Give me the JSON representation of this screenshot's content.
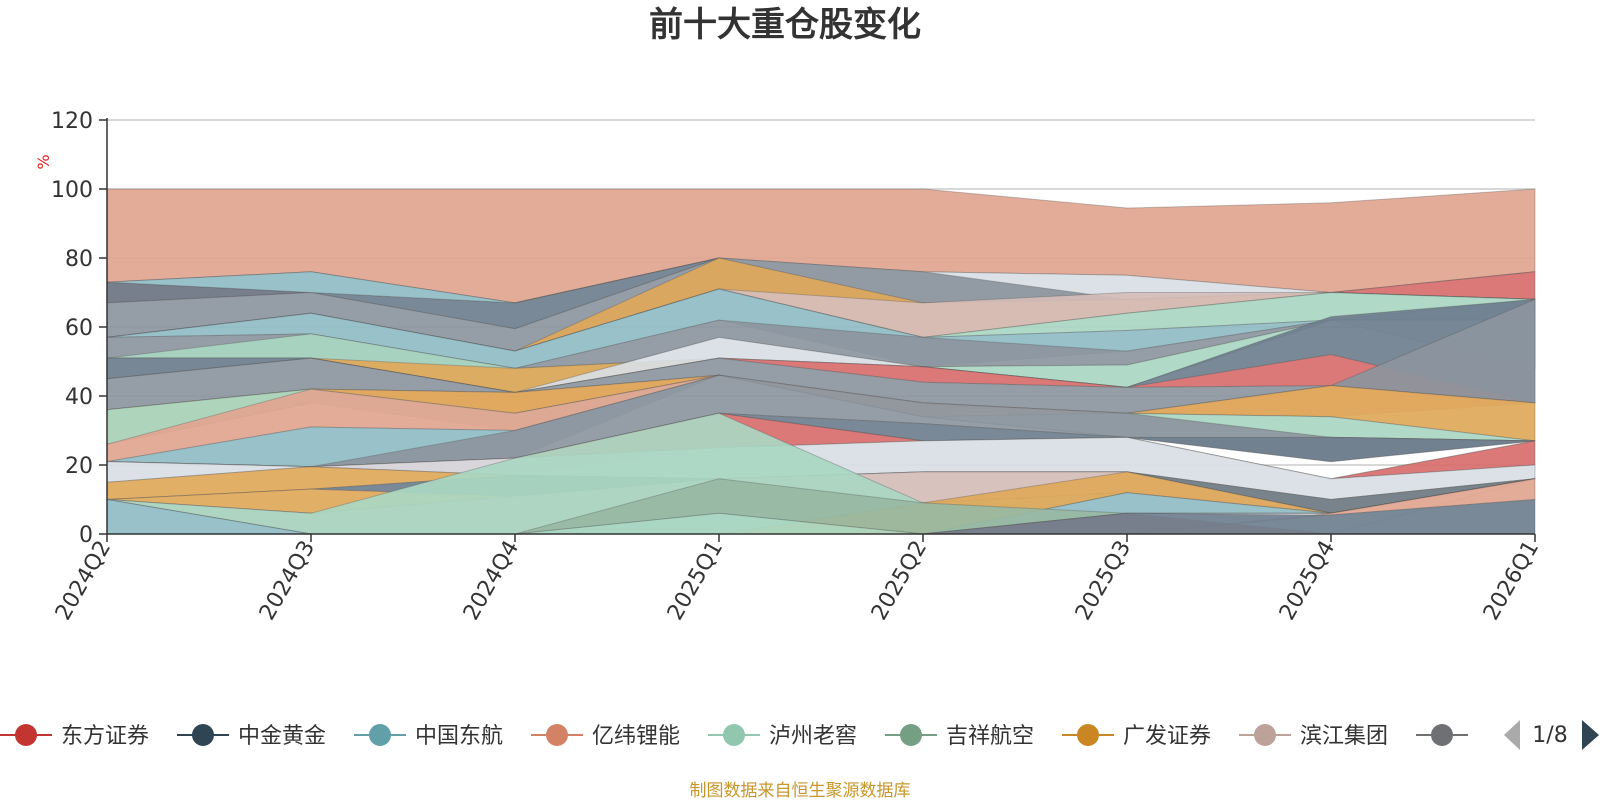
{
  "chart_data": {
    "type": "area",
    "title": "前十大重仓股变化",
    "ylabel": "%",
    "ylim": [
      0,
      120
    ],
    "yticks": [
      0,
      20,
      40,
      60,
      80,
      100,
      120
    ],
    "grid": true,
    "x": [
      "2024Q2",
      "2024Q3",
      "2024Q4",
      "2025Q1",
      "2025Q2",
      "2025Q3",
      "2025Q4",
      "2026Q1"
    ],
    "layers": [
      {
        "color": "#e1a590",
        "lower": [
          73,
          76,
          67,
          80,
          76,
          75,
          70,
          76
        ],
        "upper": [
          100,
          100,
          100,
          100,
          100,
          94.5,
          96,
          100
        ]
      },
      {
        "color": "#d8dee4",
        "lower": [
          73,
          76,
          67,
          80,
          67,
          68,
          70,
          76
        ],
        "upper": [
          73,
          76,
          67,
          80,
          76,
          75,
          70,
          76
        ]
      },
      {
        "color": "#d86c6c",
        "lower": [
          67,
          70,
          59.5,
          80,
          67,
          68,
          70,
          68
        ],
        "upper": [
          73,
          70,
          59.5,
          80,
          67,
          68,
          70,
          76
        ]
      },
      {
        "color": "#6f7f8e",
        "lower": [
          67,
          70,
          59.5,
          80,
          67,
          68,
          70,
          68
        ],
        "upper": [
          73,
          70,
          67,
          80,
          67,
          68,
          70,
          68
        ]
      },
      {
        "color": "#8fbcc6",
        "lower": [
          73,
          70,
          67,
          80,
          67,
          68,
          70,
          68
        ],
        "upper": [
          73,
          76,
          67,
          80,
          67,
          68,
          70,
          68
        ]
      },
      {
        "color": "#8c959e",
        "lower": [
          57,
          64,
          53,
          71,
          67,
          68,
          70,
          68
        ],
        "upper": [
          67,
          70,
          59.5,
          80,
          76,
          68,
          70,
          68
        ]
      },
      {
        "color": "#e0a85a",
        "lower": [
          57,
          64,
          53,
          71,
          57,
          64,
          70,
          68
        ],
        "upper": [
          57,
          64,
          53,
          80,
          67,
          68,
          70,
          68
        ]
      },
      {
        "color": "#d5bdb8",
        "lower": [
          57,
          64,
          53,
          71,
          57,
          64,
          70,
          68
        ],
        "upper": [
          57,
          64,
          53,
          71,
          67,
          70,
          70,
          68
        ]
      },
      {
        "color": "#a9d7c2",
        "lower": [
          57,
          64,
          53,
          71,
          57,
          59,
          62,
          68
        ],
        "upper": [
          57,
          64,
          53,
          71,
          57,
          64,
          70,
          68
        ]
      },
      {
        "color": "#8fbcc6",
        "lower": [
          57,
          58,
          48,
          62,
          48.5,
          53,
          62,
          62
        ],
        "upper": [
          57,
          64,
          53,
          71,
          57,
          59,
          62,
          68
        ]
      },
      {
        "color": "#8c959e",
        "lower": [
          51,
          51,
          41,
          57,
          48.5,
          49,
          62,
          62
        ],
        "upper": [
          57,
          58,
          48,
          62,
          57,
          53,
          62,
          62
        ]
      },
      {
        "color": "#a9d7c2",
        "lower": [
          51,
          51,
          41,
          51,
          48.5,
          42.5,
          62,
          62
        ],
        "upper": [
          51,
          58,
          48,
          51,
          48.5,
          49,
          62,
          62
        ]
      },
      {
        "color": "#e0a85a",
        "lower": [
          51,
          51,
          41,
          51,
          48.5,
          42.5,
          62,
          62
        ],
        "upper": [
          51,
          51,
          48,
          51,
          48.5,
          42.5,
          62,
          62
        ]
      },
      {
        "color": "#d8dee4",
        "lower": [
          45,
          51,
          41,
          51,
          48.5,
          42.5,
          62,
          48
        ],
        "upper": [
          51,
          51,
          41,
          57,
          48.5,
          42.5,
          62,
          62
        ]
      },
      {
        "color": "#6f7f8e",
        "lower": [
          45,
          51,
          41,
          51,
          48.5,
          42.5,
          52,
          38
        ],
        "upper": [
          51,
          51,
          41,
          51,
          48.5,
          42.5,
          63,
          68
        ]
      },
      {
        "color": "#d86c6c",
        "lower": [
          45,
          51,
          41,
          51,
          44,
          42.5,
          43,
          38
        ],
        "upper": [
          45,
          51,
          41,
          51,
          48.5,
          42.5,
          52,
          38
        ]
      },
      {
        "color": "#8c959e",
        "lower": [
          36,
          42,
          41,
          46,
          38,
          35,
          43,
          38
        ],
        "upper": [
          45,
          51,
          41,
          51,
          44,
          42.5,
          43,
          68
        ]
      },
      {
        "color": "#e1a590",
        "lower": [
          36,
          42,
          35,
          46,
          34,
          35,
          34,
          38
        ],
        "upper": [
          36,
          42,
          41,
          46,
          38,
          35,
          43,
          38
        ]
      },
      {
        "color": "#e0a85a",
        "lower": [
          26,
          38,
          35,
          46,
          34,
          35,
          34,
          27
        ],
        "upper": [
          36,
          42,
          41,
          46,
          34,
          35,
          43,
          38
        ]
      },
      {
        "color": "#a9d7c2",
        "lower": [
          26,
          38,
          30,
          46,
          34,
          28,
          28,
          27
        ],
        "upper": [
          36,
          42,
          35,
          46,
          34,
          35,
          34,
          27
        ]
      },
      {
        "color": "#e1a590",
        "lower": [
          21,
          31,
          30,
          46,
          34,
          28,
          28,
          27
        ],
        "upper": [
          26,
          42,
          35,
          46,
          34,
          28,
          28,
          27
        ]
      },
      {
        "color": "#8fbcc6",
        "lower": [
          21,
          19.5,
          22,
          46,
          34,
          28,
          28,
          27
        ],
        "upper": [
          21,
          31,
          30,
          46,
          34,
          28,
          28,
          27
        ]
      },
      {
        "color": "#8c959e",
        "lower": [
          21,
          19.5,
          22,
          35,
          32,
          28,
          21,
          27
        ],
        "upper": [
          21,
          19.5,
          30,
          46,
          38,
          35,
          28,
          27
        ]
      },
      {
        "color": "#6f7f8e",
        "lower": [
          21,
          19.5,
          22,
          35,
          27,
          28,
          21,
          27
        ],
        "upper": [
          21,
          19.5,
          22,
          35,
          32,
          28,
          28,
          27
        ]
      },
      {
        "color": "#a9d7c2",
        "lower": [
          21,
          19.5,
          22,
          35,
          27,
          28,
          16,
          27
        ],
        "upper": [
          21,
          19.5,
          22,
          35,
          27,
          28,
          16,
          27
        ]
      },
      {
        "color": "#d86c6c",
        "lower": [
          21,
          19.5,
          17,
          25,
          27,
          28,
          16,
          20
        ],
        "upper": [
          21,
          19.5,
          22,
          35,
          27,
          28,
          16,
          27
        ]
      },
      {
        "color": "#d8dee4",
        "lower": [
          15,
          19.5,
          17,
          16,
          18,
          18,
          10,
          16
        ],
        "upper": [
          21,
          19.5,
          22,
          25,
          27,
          28,
          16,
          20
        ]
      },
      {
        "color": "#e0a85a",
        "lower": [
          10,
          13,
          17,
          16,
          18,
          18,
          6,
          16
        ],
        "upper": [
          15,
          19.5,
          17,
          16,
          18,
          18,
          10,
          16
        ]
      },
      {
        "color": "#6f7f8e",
        "lower": [
          10,
          13,
          11,
          16,
          18,
          18,
          6,
          16
        ],
        "upper": [
          10,
          13,
          17,
          16,
          18,
          18,
          10,
          16
        ]
      },
      {
        "color": "#e0a85a",
        "lower": [
          10,
          6,
          11,
          16,
          9,
          18,
          6,
          16
        ],
        "upper": [
          10,
          13,
          11,
          16,
          9,
          18,
          6,
          16
        ]
      },
      {
        "color": "#d5bdb8",
        "lower": [
          10,
          0,
          0,
          16,
          9,
          12,
          6,
          16
        ],
        "upper": [
          10,
          6,
          11,
          16,
          18,
          18,
          6,
          16
        ]
      },
      {
        "color": "#a9d7c2",
        "lower": [
          10,
          0,
          0,
          0,
          0,
          12,
          6,
          16
        ],
        "upper": [
          10,
          6,
          22,
          35,
          9,
          12,
          6,
          16
        ]
      },
      {
        "color": "#e0a85a",
        "lower": [
          10,
          0,
          0,
          0,
          0,
          12,
          6,
          16
        ],
        "upper": [
          10,
          0,
          0,
          0,
          9,
          18,
          6,
          16
        ]
      },
      {
        "color": "#8fbcc6",
        "lower": [
          0,
          0,
          0,
          0,
          0,
          6,
          6,
          16
        ],
        "upper": [
          10,
          0,
          0,
          0,
          0,
          12,
          6,
          16
        ]
      },
      {
        "color": "#97b8a2",
        "lower": [
          0,
          0,
          0,
          6,
          0,
          6,
          6,
          16
        ],
        "upper": [
          0,
          0,
          0,
          16,
          9,
          6,
          6,
          16
        ]
      },
      {
        "color": "#a9d7c2",
        "lower": [
          0,
          0,
          0,
          0,
          0,
          6,
          6,
          16
        ],
        "upper": [
          0,
          0,
          0,
          6,
          0,
          6,
          6,
          16
        ]
      },
      {
        "color": "#d86c6c",
        "lower": [
          0,
          0,
          0,
          0,
          0,
          0,
          0,
          16
        ],
        "upper": [
          0,
          0,
          0,
          0,
          0,
          6,
          0,
          16
        ]
      },
      {
        "color": "#e1a590",
        "lower": [
          0,
          0,
          0,
          0,
          0,
          0,
          5.5,
          10
        ],
        "upper": [
          0,
          0,
          0,
          0,
          0,
          0,
          6,
          16
        ]
      },
      {
        "color": "#6f7f8e",
        "lower": [
          0,
          0,
          0,
          0,
          0,
          0,
          0,
          0
        ],
        "upper": [
          0,
          0,
          0,
          0,
          0,
          6,
          5.5,
          10
        ]
      }
    ],
    "legend": {
      "placement": "bottom",
      "items": [
        {
          "name": "东方证券",
          "color": "#c23531"
        },
        {
          "name": "中金黄金",
          "color": "#2f4554"
        },
        {
          "name": "中国东航",
          "color": "#61a0a8"
        },
        {
          "name": "亿纬锂能",
          "color": "#d48265"
        },
        {
          "name": "泸州老窖",
          "color": "#91c7ae"
        },
        {
          "name": "吉祥航空",
          "color": "#749f83"
        },
        {
          "name": "广发证券",
          "color": "#ca8622"
        },
        {
          "name": "滨江集团",
          "color": "#bda29a"
        },
        {
          "name": "",
          "color": "#6e7074"
        }
      ],
      "page": "1/8"
    },
    "source_note": "制图数据来自恒生聚源数据库"
  }
}
